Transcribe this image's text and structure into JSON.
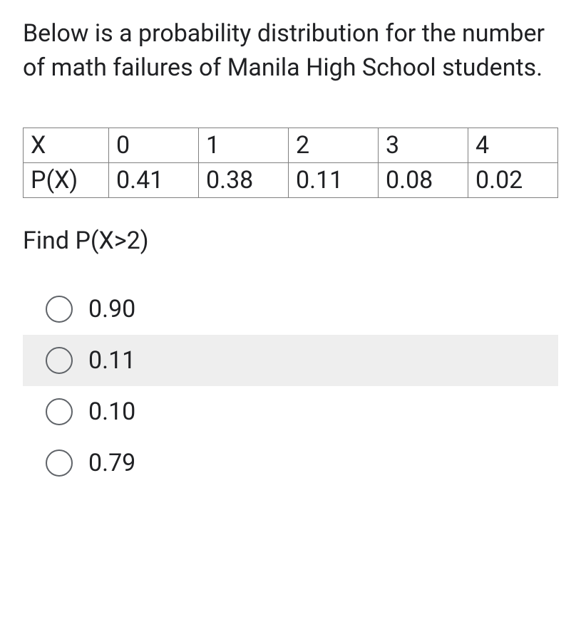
{
  "question": {
    "text": "Below is a probability distribution for the number of math failures of Manila High School students.",
    "find": "Find P(X>2)"
  },
  "table": {
    "columns": [
      "X",
      "0",
      "1",
      "2",
      "3",
      "4"
    ],
    "rows": [
      [
        "P(X)",
        "0.41",
        "0.38",
        "0.11",
        "0.08",
        "0.02"
      ]
    ],
    "border_color": "#808080",
    "cell_fontsize": 34
  },
  "options": {
    "items": [
      {
        "label": "0.90",
        "highlighted": false
      },
      {
        "label": "0.11",
        "highlighted": true
      },
      {
        "label": "0.10",
        "highlighted": false
      },
      {
        "label": "0.79",
        "highlighted": false
      }
    ],
    "radio_border_color": "#5f6368",
    "highlight_color": "#eeeeee"
  },
  "styling": {
    "background_color": "#ffffff",
    "text_color": "#202124",
    "fontsize": 34
  }
}
